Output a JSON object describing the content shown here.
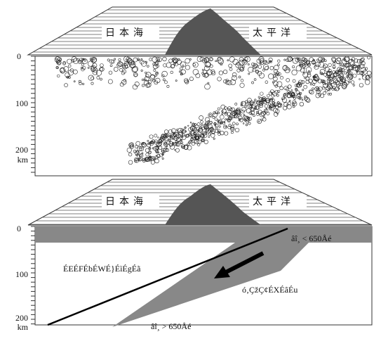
{
  "panels": [
    {
      "sea_west": "日本海",
      "sea_east": "太平洋",
      "depth_ticks": [
        "0",
        "100",
        "200"
      ],
      "depth_unit": "km"
    },
    {
      "sea_west": "日本海",
      "sea_east": "太平洋",
      "depth_ticks": [
        "0",
        "100",
        "200"
      ],
      "depth_unit": "km",
      "labels": [
        "ÉEÉFÉbÉWÉ}ÉìÉgÉã",
        "ó‚ÇžÇ¢ÉXÉâÉu",
        "âî¸ < 650Åé",
        "âî¸   > 650Åé"
      ]
    }
  ]
}
